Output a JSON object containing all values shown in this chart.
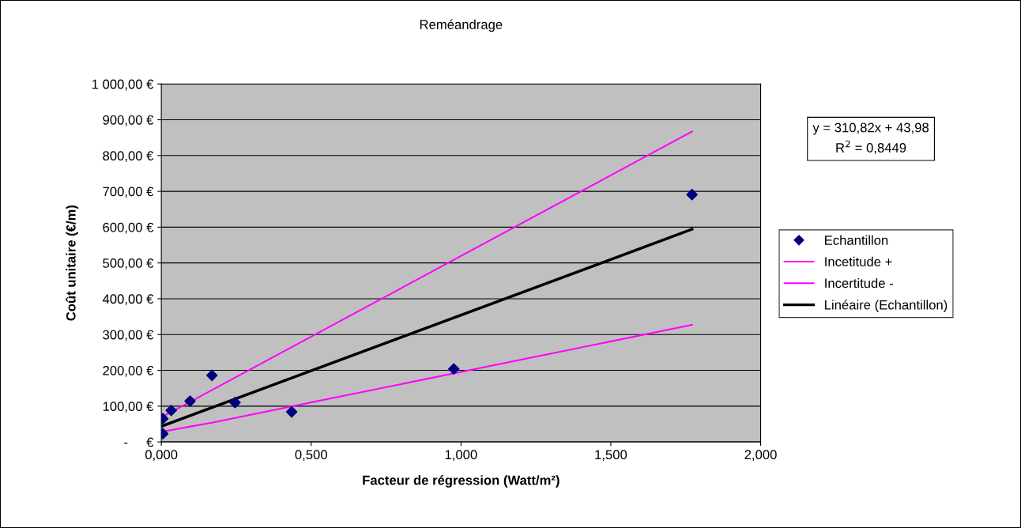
{
  "chart_data": {
    "type": "scatter",
    "title": "Reméandrage",
    "xlabel": "Facteur de régression (Watt/m²)",
    "ylabel": "Coût unitaire (€/m)",
    "series": [
      {
        "name": "Echantillon",
        "color": "#000080",
        "marker": "diamond",
        "x": [
          0.005,
          0.005,
          0.033,
          0.096,
          0.169,
          0.246,
          0.435,
          0.976,
          1.771
        ],
        "values": [
          65,
          23,
          88,
          114,
          186,
          110,
          84,
          204,
          691
        ]
      },
      {
        "name": "Incetitude +",
        "type": "line",
        "color": "#ff00ff",
        "x": [
          0.005,
          1.771
        ],
        "values": [
          71,
          867
        ]
      },
      {
        "name": "Incertitude -",
        "type": "line",
        "color": "#ff00ff",
        "x": [
          0.005,
          0.169,
          1.771
        ],
        "values": [
          29,
          54,
          327
        ]
      },
      {
        "name": "Linéaire (Echantillon)",
        "type": "line",
        "color": "#000000",
        "x": [
          0.005,
          1.771
        ],
        "values": [
          45,
          594
        ]
      }
    ],
    "xlim": [
      0,
      2
    ],
    "xticks": [
      {
        "value": 0,
        "label": "0,000"
      },
      {
        "value": 0.5,
        "label": "0,500"
      },
      {
        "value": 1,
        "label": "1,000"
      },
      {
        "value": 1.5,
        "label": "1,500"
      },
      {
        "value": 2,
        "label": "2,000"
      }
    ],
    "ylim": [
      0,
      1000
    ],
    "yticks": [
      {
        "value": 0,
        "label": "-     €"
      },
      {
        "value": 100,
        "label": "100,00 €"
      },
      {
        "value": 200,
        "label": "200,00 €"
      },
      {
        "value": 300,
        "label": "300,00 €"
      },
      {
        "value": 400,
        "label": "400,00 €"
      },
      {
        "value": 500,
        "label": "500,00 €"
      },
      {
        "value": 600,
        "label": "600,00 €"
      },
      {
        "value": 700,
        "label": "700,00 €"
      },
      {
        "value": 800,
        "label": "800,00 €"
      },
      {
        "value": 900,
        "label": "900,00 €"
      },
      {
        "value": 1000,
        "label": "1 000,00 €"
      }
    ],
    "grid": "y",
    "legend": "right",
    "annotations": [
      "y = 310,82x + 43,98\nR$^{2}$ = 0,8449"
    ]
  }
}
